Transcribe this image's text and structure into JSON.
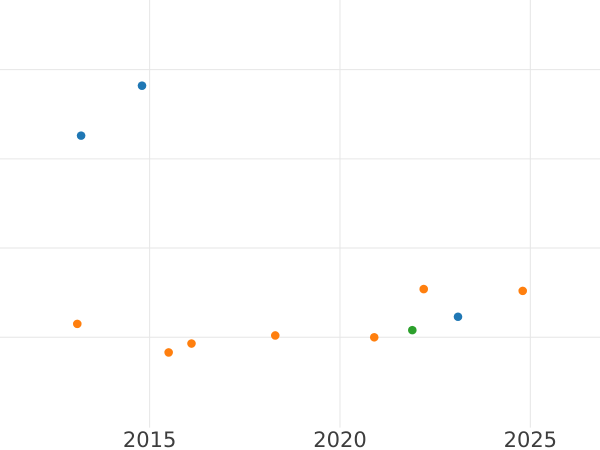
{
  "figure": {
    "background_color": "#ffffff",
    "grid_color": "#e6e6e6",
    "tick_label_color": "#3d3d3d"
  },
  "chart_data": {
    "type": "scatter",
    "title": "",
    "xlabel": "",
    "ylabel": "",
    "grid": true,
    "legend": "none",
    "xlim": [
      2011.07,
      2026.83
    ],
    "ylim": [
      -0.99,
      3.78
    ],
    "y_units": "unlabeled gridline units (no y tick labels visible)",
    "x_ticks": [
      {
        "value": 2015,
        "label": "2015"
      },
      {
        "value": 2020,
        "label": "2020"
      },
      {
        "value": 2025,
        "label": "2025"
      }
    ],
    "y_gridlines": [
      0,
      1,
      2,
      3
    ],
    "marker_radius_px": 4.3,
    "series": [
      {
        "name": "series-blue",
        "color": "#1f77b4",
        "points": [
          {
            "x": 2013.2,
            "y": 2.26
          },
          {
            "x": 2014.8,
            "y": 2.82
          },
          {
            "x": 2023.1,
            "y": 0.23
          }
        ]
      },
      {
        "name": "series-orange",
        "color": "#ff7f0e",
        "points": [
          {
            "x": 2013.1,
            "y": 0.15
          },
          {
            "x": 2015.5,
            "y": -0.17
          },
          {
            "x": 2016.1,
            "y": -0.07
          },
          {
            "x": 2018.3,
            "y": 0.02
          },
          {
            "x": 2020.9,
            "y": 0.0
          },
          {
            "x": 2022.2,
            "y": 0.54
          },
          {
            "x": 2024.8,
            "y": 0.52
          }
        ]
      },
      {
        "name": "series-green",
        "color": "#2ca02c",
        "points": [
          {
            "x": 2021.9,
            "y": 0.08
          }
        ]
      }
    ]
  }
}
